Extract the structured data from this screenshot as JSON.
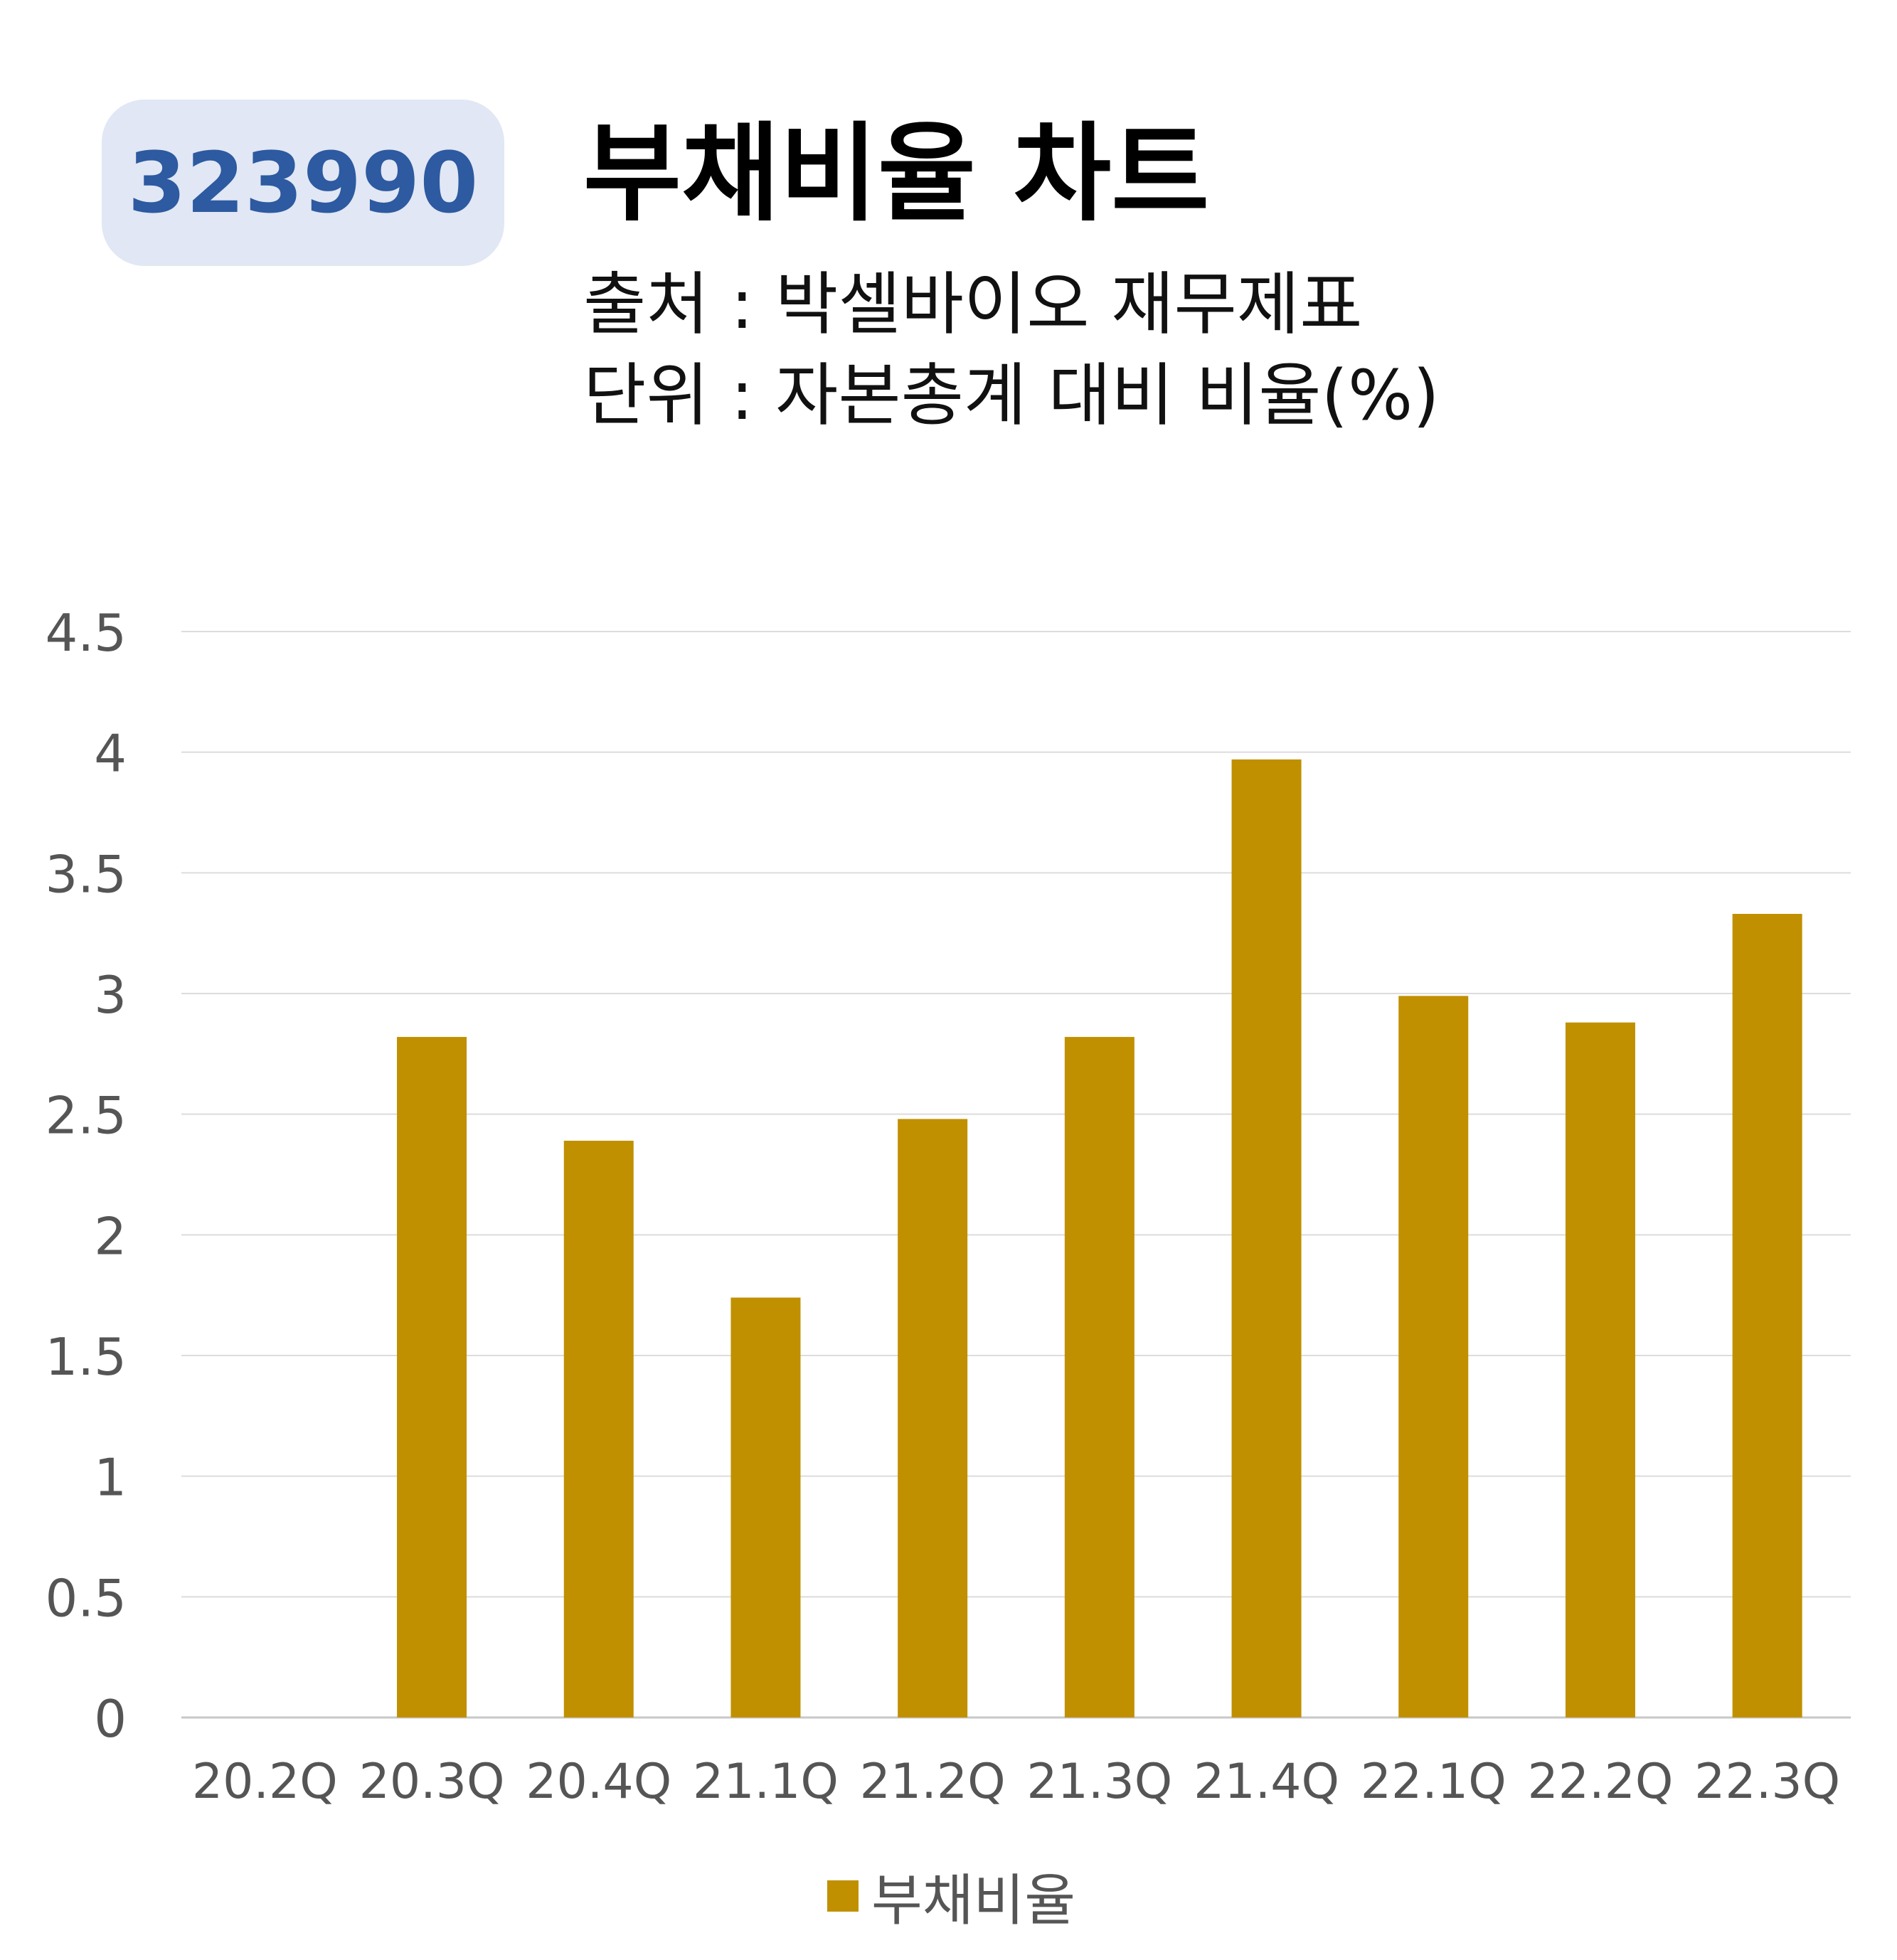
{
  "header": {
    "code": "323990",
    "title": "부채비율 차트",
    "source": "출처 : 박셀바이오 재무제표",
    "unit": "단위 : 자본총계 대비 비율(%)"
  },
  "chart_data": {
    "type": "bar",
    "categories": [
      "20.2Q",
      "20.3Q",
      "20.4Q",
      "21.1Q",
      "21.2Q",
      "21.3Q",
      "21.4Q",
      "22.1Q",
      "22.2Q",
      "22.3Q"
    ],
    "series": [
      {
        "name": "부채비율",
        "values": [
          0,
          2.82,
          2.39,
          1.74,
          2.48,
          2.82,
          3.97,
          2.99,
          2.88,
          3.33
        ],
        "color": "#c09000"
      }
    ],
    "yticks": [
      "0",
      "0.5",
      "1",
      "1.5",
      "2",
      "2.5",
      "3",
      "3.5",
      "4",
      "4.5"
    ],
    "ylim": [
      0,
      4.5
    ],
    "grid": true,
    "legend_position": "bottom"
  }
}
